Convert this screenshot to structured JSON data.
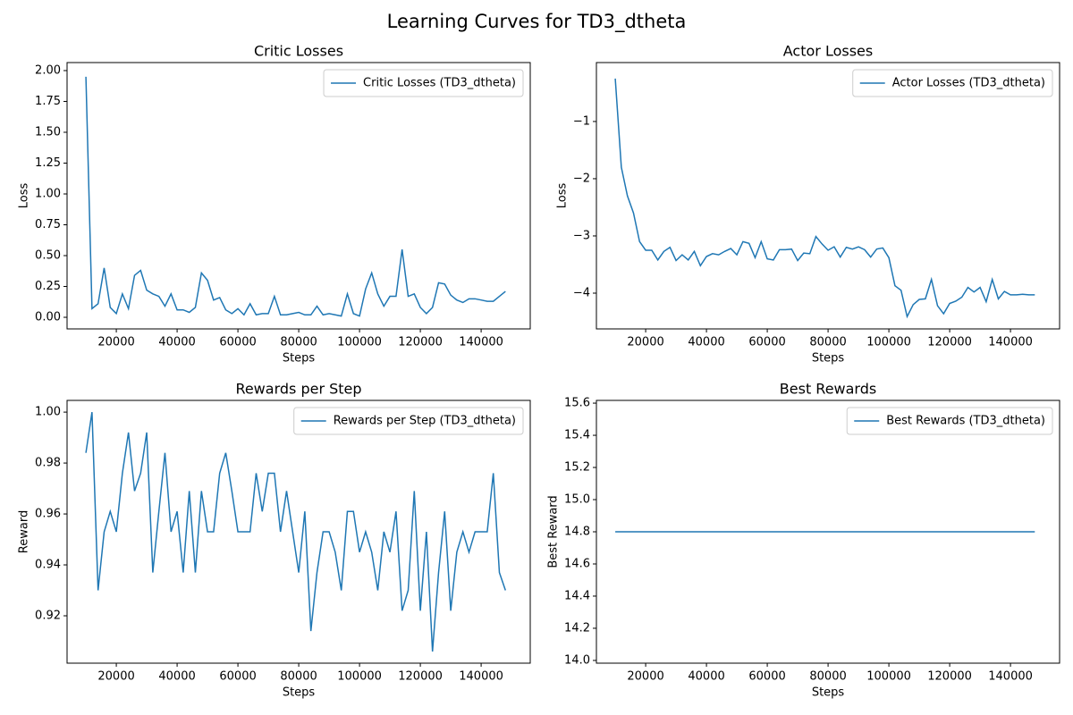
{
  "title": "Learning Curves for TD3_dtheta",
  "chart_data": [
    {
      "type": "line",
      "title": "Critic Losses",
      "xlabel": "Steps",
      "ylabel": "Loss",
      "legend": "upper right",
      "x": [
        10000,
        12000,
        14000,
        16000,
        18000,
        20000,
        22000,
        24000,
        26000,
        28000,
        30000,
        32000,
        34000,
        36000,
        38000,
        40000,
        42000,
        44000,
        46000,
        48000,
        50000,
        52000,
        54000,
        56000,
        58000,
        60000,
        62000,
        64000,
        66000,
        68000,
        70000,
        72000,
        74000,
        76000,
        78000,
        80000,
        82000,
        84000,
        86000,
        88000,
        90000,
        92000,
        94000,
        96000,
        98000,
        100000,
        102000,
        104000,
        106000,
        108000,
        110000,
        112000,
        114000,
        116000,
        118000,
        120000,
        122000,
        124000,
        126000,
        128000,
        130000,
        132000,
        134000,
        136000,
        138000,
        140000,
        142000,
        144000,
        146000,
        148000
      ],
      "series": [
        {
          "name": "Critic Losses (TD3_dtheta)",
          "color": "#1f77b4",
          "values": [
            1.95,
            0.07,
            0.11,
            0.4,
            0.08,
            0.03,
            0.19,
            0.07,
            0.34,
            0.38,
            0.22,
            0.19,
            0.17,
            0.09,
            0.19,
            0.06,
            0.06,
            0.04,
            0.08,
            0.36,
            0.3,
            0.14,
            0.16,
            0.06,
            0.03,
            0.07,
            0.02,
            0.11,
            0.02,
            0.03,
            0.03,
            0.17,
            0.02,
            0.02,
            0.03,
            0.04,
            0.02,
            0.02,
            0.09,
            0.02,
            0.03,
            0.02,
            0.01,
            0.19,
            0.03,
            0.01,
            0.23,
            0.36,
            0.19,
            0.09,
            0.17,
            0.17,
            0.55,
            0.17,
            0.19,
            0.08,
            0.03,
            0.08,
            0.28,
            0.27,
            0.18,
            0.14,
            0.12,
            0.15,
            0.15,
            0.14,
            0.13,
            0.13,
            0.17,
            0.21
          ]
        }
      ],
      "xlim": [
        3800,
        156150
      ],
      "ylim": [
        -0.094,
        2.065
      ],
      "xticks": [
        20000,
        40000,
        60000,
        80000,
        100000,
        120000,
        140000
      ],
      "yticks": [
        {
          "value": 0,
          "label": "0.00"
        },
        {
          "value": 0.25,
          "label": "0.25"
        },
        {
          "value": 0.5,
          "label": "0.50"
        },
        {
          "value": 0.75,
          "label": "0.75"
        },
        {
          "value": 1,
          "label": "1.00"
        },
        {
          "value": 1.25,
          "label": "1.25"
        },
        {
          "value": 1.5,
          "label": "1.50"
        },
        {
          "value": 1.75,
          "label": "1.75"
        },
        {
          "value": 2,
          "label": "2.00"
        }
      ]
    },
    {
      "type": "line",
      "title": "Actor Losses",
      "xlabel": "Steps",
      "ylabel": "Loss",
      "legend": "upper right",
      "x": [
        10000,
        12000,
        14000,
        16000,
        18000,
        20000,
        22000,
        24000,
        26000,
        28000,
        30000,
        32000,
        34000,
        36000,
        38000,
        40000,
        42000,
        44000,
        46000,
        48000,
        50000,
        52000,
        54000,
        56000,
        58000,
        60000,
        62000,
        64000,
        66000,
        68000,
        70000,
        72000,
        74000,
        76000,
        78000,
        80000,
        82000,
        84000,
        86000,
        88000,
        90000,
        92000,
        94000,
        96000,
        98000,
        100000,
        102000,
        104000,
        106000,
        108000,
        110000,
        112000,
        114000,
        116000,
        118000,
        120000,
        122000,
        124000,
        126000,
        128000,
        130000,
        132000,
        134000,
        136000,
        138000,
        140000,
        142000,
        144000,
        146000,
        148000
      ],
      "series": [
        {
          "name": "Actor Losses (TD3_dtheta)",
          "color": "#1f77b4",
          "values": [
            -0.25,
            -1.8,
            -2.3,
            -2.6,
            -3.1,
            -3.25,
            -3.25,
            -3.42,
            -3.27,
            -3.2,
            -3.43,
            -3.33,
            -3.42,
            -3.27,
            -3.52,
            -3.36,
            -3.31,
            -3.33,
            -3.27,
            -3.22,
            -3.33,
            -3.1,
            -3.13,
            -3.38,
            -3.1,
            -3.4,
            -3.42,
            -3.24,
            -3.24,
            -3.23,
            -3.43,
            -3.3,
            -3.31,
            -3.01,
            -3.14,
            -3.25,
            -3.19,
            -3.37,
            -3.2,
            -3.23,
            -3.19,
            -3.24,
            -3.37,
            -3.23,
            -3.21,
            -3.38,
            -3.87,
            -3.95,
            -4.41,
            -4.2,
            -4.11,
            -4.1,
            -3.76,
            -4.22,
            -4.36,
            -4.18,
            -4.14,
            -4.07,
            -3.9,
            -3.98,
            -3.9,
            -4.15,
            -3.76,
            -4.1,
            -3.97,
            -4.03,
            -4.03,
            -4.02,
            -4.03,
            -4.03
          ]
        }
      ],
      "xlim": [
        3800,
        156150
      ],
      "ylim": [
        -4.625,
        0.03
      ],
      "xticks": [
        20000,
        40000,
        60000,
        80000,
        100000,
        120000,
        140000
      ],
      "yticks": [
        {
          "value": -4,
          "label": "−4"
        },
        {
          "value": -3,
          "label": "−3"
        },
        {
          "value": -2,
          "label": "−2"
        },
        {
          "value": -1,
          "label": "−1"
        }
      ]
    },
    {
      "type": "line",
      "title": "Rewards per Step",
      "xlabel": "Steps",
      "ylabel": "Reward",
      "legend": "upper right",
      "x": [
        10000,
        12000,
        14000,
        16000,
        18000,
        20000,
        22000,
        24000,
        26000,
        28000,
        30000,
        32000,
        34000,
        36000,
        38000,
        40000,
        42000,
        44000,
        46000,
        48000,
        50000,
        52000,
        54000,
        56000,
        58000,
        60000,
        62000,
        64000,
        66000,
        68000,
        70000,
        72000,
        74000,
        76000,
        78000,
        80000,
        82000,
        84000,
        86000,
        88000,
        90000,
        92000,
        94000,
        96000,
        98000,
        100000,
        102000,
        104000,
        106000,
        108000,
        110000,
        112000,
        114000,
        116000,
        118000,
        120000,
        122000,
        124000,
        126000,
        128000,
        130000,
        132000,
        134000,
        136000,
        138000,
        140000,
        142000,
        144000,
        146000,
        148000
      ],
      "series": [
        {
          "name": "Rewards per Step (TD3_dtheta)",
          "color": "#1f77b4",
          "values": [
            0.984,
            1.0,
            0.93,
            0.953,
            0.961,
            0.953,
            0.976,
            0.992,
            0.969,
            0.976,
            0.992,
            0.937,
            0.961,
            0.984,
            0.953,
            0.961,
            0.937,
            0.969,
            0.937,
            0.969,
            0.953,
            0.953,
            0.976,
            0.984,
            0.969,
            0.953,
            0.953,
            0.953,
            0.976,
            0.961,
            0.976,
            0.976,
            0.953,
            0.969,
            0.953,
            0.937,
            0.961,
            0.914,
            0.937,
            0.953,
            0.953,
            0.945,
            0.93,
            0.961,
            0.961,
            0.945,
            0.953,
            0.945,
            0.93,
            0.953,
            0.945,
            0.961,
            0.922,
            0.93,
            0.969,
            0.922,
            0.953,
            0.906,
            0.937,
            0.961,
            0.922,
            0.945,
            0.953,
            0.945,
            0.953,
            0.953,
            0.953,
            0.976,
            0.937,
            0.93
          ]
        }
      ],
      "xlim": [
        3800,
        156150
      ],
      "ylim": [
        0.9014,
        1.0046
      ],
      "xticks": [
        20000,
        40000,
        60000,
        80000,
        100000,
        120000,
        140000
      ],
      "yticks": [
        0.92,
        0.94,
        0.96,
        0.98,
        {
          "value": 1,
          "label": "1.00"
        }
      ]
    },
    {
      "type": "line",
      "title": "Best Rewards",
      "xlabel": "Steps",
      "ylabel": "Best Reward",
      "legend": "upper right",
      "x": [
        10000,
        12000,
        14000,
        16000,
        18000,
        20000,
        22000,
        24000,
        26000,
        28000,
        30000,
        32000,
        34000,
        36000,
        38000,
        40000,
        42000,
        44000,
        46000,
        48000,
        50000,
        52000,
        54000,
        56000,
        58000,
        60000,
        62000,
        64000,
        66000,
        68000,
        70000,
        72000,
        74000,
        76000,
        78000,
        80000,
        82000,
        84000,
        86000,
        88000,
        90000,
        92000,
        94000,
        96000,
        98000,
        100000,
        102000,
        104000,
        106000,
        108000,
        110000,
        112000,
        114000,
        116000,
        118000,
        120000,
        122000,
        124000,
        126000,
        128000,
        130000,
        132000,
        134000,
        136000,
        138000,
        140000,
        142000,
        144000,
        146000,
        148000
      ],
      "series": [
        {
          "name": "Best Rewards (TD3_dtheta)",
          "color": "#1f77b4",
          "values": [
            14.8,
            14.8,
            14.8,
            14.8,
            14.8,
            14.8,
            14.8,
            14.8,
            14.8,
            14.8,
            14.8,
            14.8,
            14.8,
            14.8,
            14.8,
            14.8,
            14.8,
            14.8,
            14.8,
            14.8,
            14.8,
            14.8,
            14.8,
            14.8,
            14.8,
            14.8,
            14.8,
            14.8,
            14.8,
            14.8,
            14.8,
            14.8,
            14.8,
            14.8,
            14.8,
            14.8,
            14.8,
            14.8,
            14.8,
            14.8,
            14.8,
            14.8,
            14.8,
            14.8,
            14.8,
            14.8,
            14.8,
            14.8,
            14.8,
            14.8,
            14.8,
            14.8,
            14.8,
            14.8,
            14.8,
            14.8,
            14.8,
            14.8,
            14.8,
            14.8,
            14.8,
            14.8,
            14.8,
            14.8,
            14.8,
            14.8,
            14.8,
            14.8,
            14.8,
            14.8
          ]
        }
      ],
      "xlim": [
        3800,
        156150
      ],
      "ylim": [
        13.983,
        15.617
      ],
      "xticks": [
        20000,
        40000,
        60000,
        80000,
        100000,
        120000,
        140000
      ],
      "yticks": [
        {
          "value": 14,
          "label": "14.0"
        },
        {
          "value": 14.2,
          "label": "14.2"
        },
        {
          "value": 14.4,
          "label": "14.4"
        },
        {
          "value": 14.6,
          "label": "14.6"
        },
        14.8,
        {
          "value": 15,
          "label": "15.0"
        },
        15.2,
        15.4,
        15.6
      ]
    }
  ]
}
